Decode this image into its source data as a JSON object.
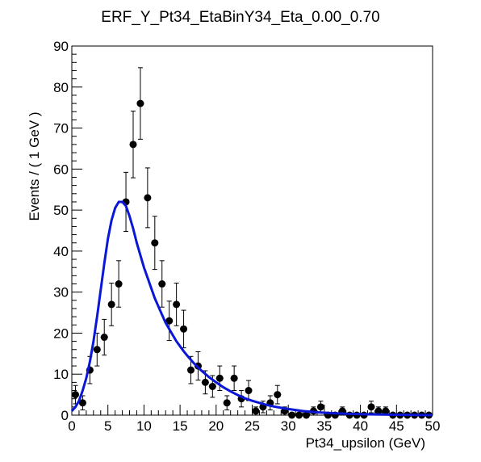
{
  "chart_data": {
    "type": "scatter",
    "title": "ERF_Y_Pt34_EtaBinY34_Eta_0.00_0.70",
    "xlabel": "Pt34_upsilon (GeV)",
    "ylabel": "Events / ( 1 GeV )",
    "xlim": [
      0,
      50
    ],
    "ylim": [
      0,
      90
    ],
    "xticks": [
      0,
      5,
      10,
      15,
      20,
      25,
      30,
      35,
      40,
      45,
      50
    ],
    "yticks": [
      0,
      10,
      20,
      30,
      40,
      50,
      60,
      70,
      80,
      90
    ],
    "grid": false,
    "legend": "none",
    "series": [
      {
        "kind": "points_with_errors",
        "color": "#000000",
        "x": [
          0.5,
          1.5,
          2.5,
          3.5,
          4.5,
          5.5,
          6.5,
          7.5,
          8.5,
          9.5,
          10.5,
          11.5,
          12.5,
          13.5,
          14.5,
          15.5,
          16.5,
          17.5,
          18.5,
          19.5,
          20.5,
          21.5,
          22.5,
          23.5,
          24.5,
          25.5,
          26.5,
          27.5,
          28.5,
          29.5,
          30.5,
          31.5,
          32.5,
          33.5,
          34.5,
          35.5,
          36.5,
          37.5,
          38.5,
          39.5,
          40.5,
          41.5,
          42.5,
          43.5,
          44.5,
          45.5,
          46.5,
          47.5,
          48.5,
          49.5
        ],
        "y": [
          5,
          3,
          11,
          16,
          19,
          27,
          32,
          52,
          66,
          76,
          53,
          42,
          32,
          23,
          27,
          21,
          11,
          12,
          8,
          7,
          9,
          3,
          9,
          4,
          6,
          1,
          2,
          3,
          5,
          1,
          0,
          0,
          0,
          1,
          2,
          0,
          0,
          1,
          0,
          0,
          0,
          2,
          1,
          1,
          0,
          0,
          0,
          0,
          0,
          0
        ]
      },
      {
        "kind": "fit_curve",
        "color": "#0a17d6",
        "x": [
          0,
          0.5,
          1,
          1.5,
          2,
          2.5,
          3,
          3.5,
          4,
          4.5,
          5,
          5.5,
          6,
          6.5,
          7,
          7.5,
          8,
          8.5,
          9,
          9.5,
          10,
          10.5,
          11,
          11.5,
          12,
          12.5,
          13,
          13.5,
          14,
          14.5,
          15,
          15.5,
          16,
          16.5,
          17,
          17.5,
          18,
          19,
          20,
          21,
          22,
          23,
          24,
          25,
          26,
          27,
          28,
          29,
          30,
          32,
          34,
          36,
          38,
          40,
          42,
          44,
          46,
          48,
          50
        ],
        "y": [
          1,
          2,
          3.5,
          6,
          9,
          13,
          18,
          24,
          30.5,
          37,
          43,
          47.5,
          50.5,
          52,
          52,
          51,
          48.5,
          45.5,
          42,
          39,
          36,
          33.5,
          31,
          28.5,
          26.5,
          24.5,
          22.5,
          21,
          19.5,
          18,
          16.8,
          15.6,
          14.5,
          13.5,
          12.5,
          11.6,
          10.8,
          9.3,
          8,
          6.8,
          5.8,
          4.9,
          4.1,
          3.5,
          3,
          2.5,
          2.1,
          1.8,
          1.5,
          1,
          0.7,
          0.5,
          0.35,
          0.25,
          0.18,
          0.12,
          0.08,
          0.05,
          0.03
        ]
      }
    ]
  }
}
